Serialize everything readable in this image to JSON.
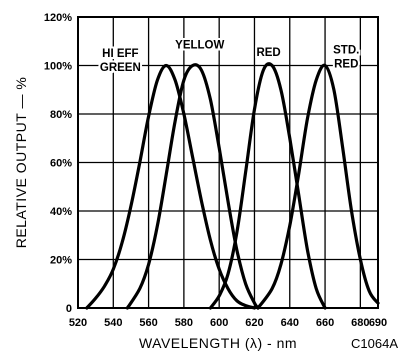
{
  "chart_data": {
    "type": "line",
    "title": "",
    "xlabel": "WAVELENGTH (λ) - nm",
    "ylabel": "RELATIVE OUTPUT — %",
    "figure_id": "C1064A",
    "xlim": [
      520,
      690
    ],
    "ylim": [
      0,
      120
    ],
    "x_ticks": [
      "520",
      "540",
      "560",
      "580",
      "600",
      "620",
      "640",
      "660",
      "680",
      "690"
    ],
    "y_ticks": [
      "0",
      "20%",
      "40%",
      "60%",
      "80%",
      "100%",
      "120%"
    ],
    "grid": true,
    "series": [
      {
        "name": "HI EFF GREEN",
        "label_lines": [
          "HI  EFF",
          "GREEN"
        ],
        "x": [
          525,
          530,
          535,
          540,
          545,
          550,
          555,
          560,
          565,
          570,
          575,
          580,
          585,
          590,
          595,
          600,
          605,
          610,
          615,
          620
        ],
        "y": [
          0,
          4,
          9,
          16,
          27,
          42,
          60,
          79,
          94,
          100,
          94,
          80,
          62,
          44,
          28,
          16,
          8,
          3,
          1,
          0
        ]
      },
      {
        "name": "YELLOW",
        "label_lines": [
          "YELLOW"
        ],
        "x": [
          548,
          555,
          560,
          565,
          570,
          575,
          580,
          585,
          590,
          595,
          600,
          605,
          610,
          615,
          620,
          622
        ],
        "y": [
          0,
          8,
          18,
          34,
          55,
          77,
          94,
          100,
          98,
          86,
          66,
          44,
          24,
          10,
          2,
          0
        ]
      },
      {
        "name": "RED",
        "label_lines": [
          "RED"
        ],
        "x": [
          595,
          600,
          605,
          610,
          615,
          620,
          625,
          630,
          635,
          640,
          645,
          650,
          655,
          660
        ],
        "y": [
          0,
          5,
          14,
          31,
          56,
          82,
          98,
          100,
          90,
          70,
          47,
          24,
          8,
          0
        ]
      },
      {
        "name": "STD. RED",
        "label_lines": [
          "STD.",
          "RED"
        ],
        "x": [
          622,
          630,
          635,
          640,
          645,
          650,
          655,
          660,
          665,
          670,
          675,
          680,
          685,
          690
        ],
        "y": [
          0,
          8,
          18,
          34,
          55,
          78,
          94,
          100,
          90,
          66,
          40,
          20,
          7,
          2
        ]
      }
    ]
  }
}
